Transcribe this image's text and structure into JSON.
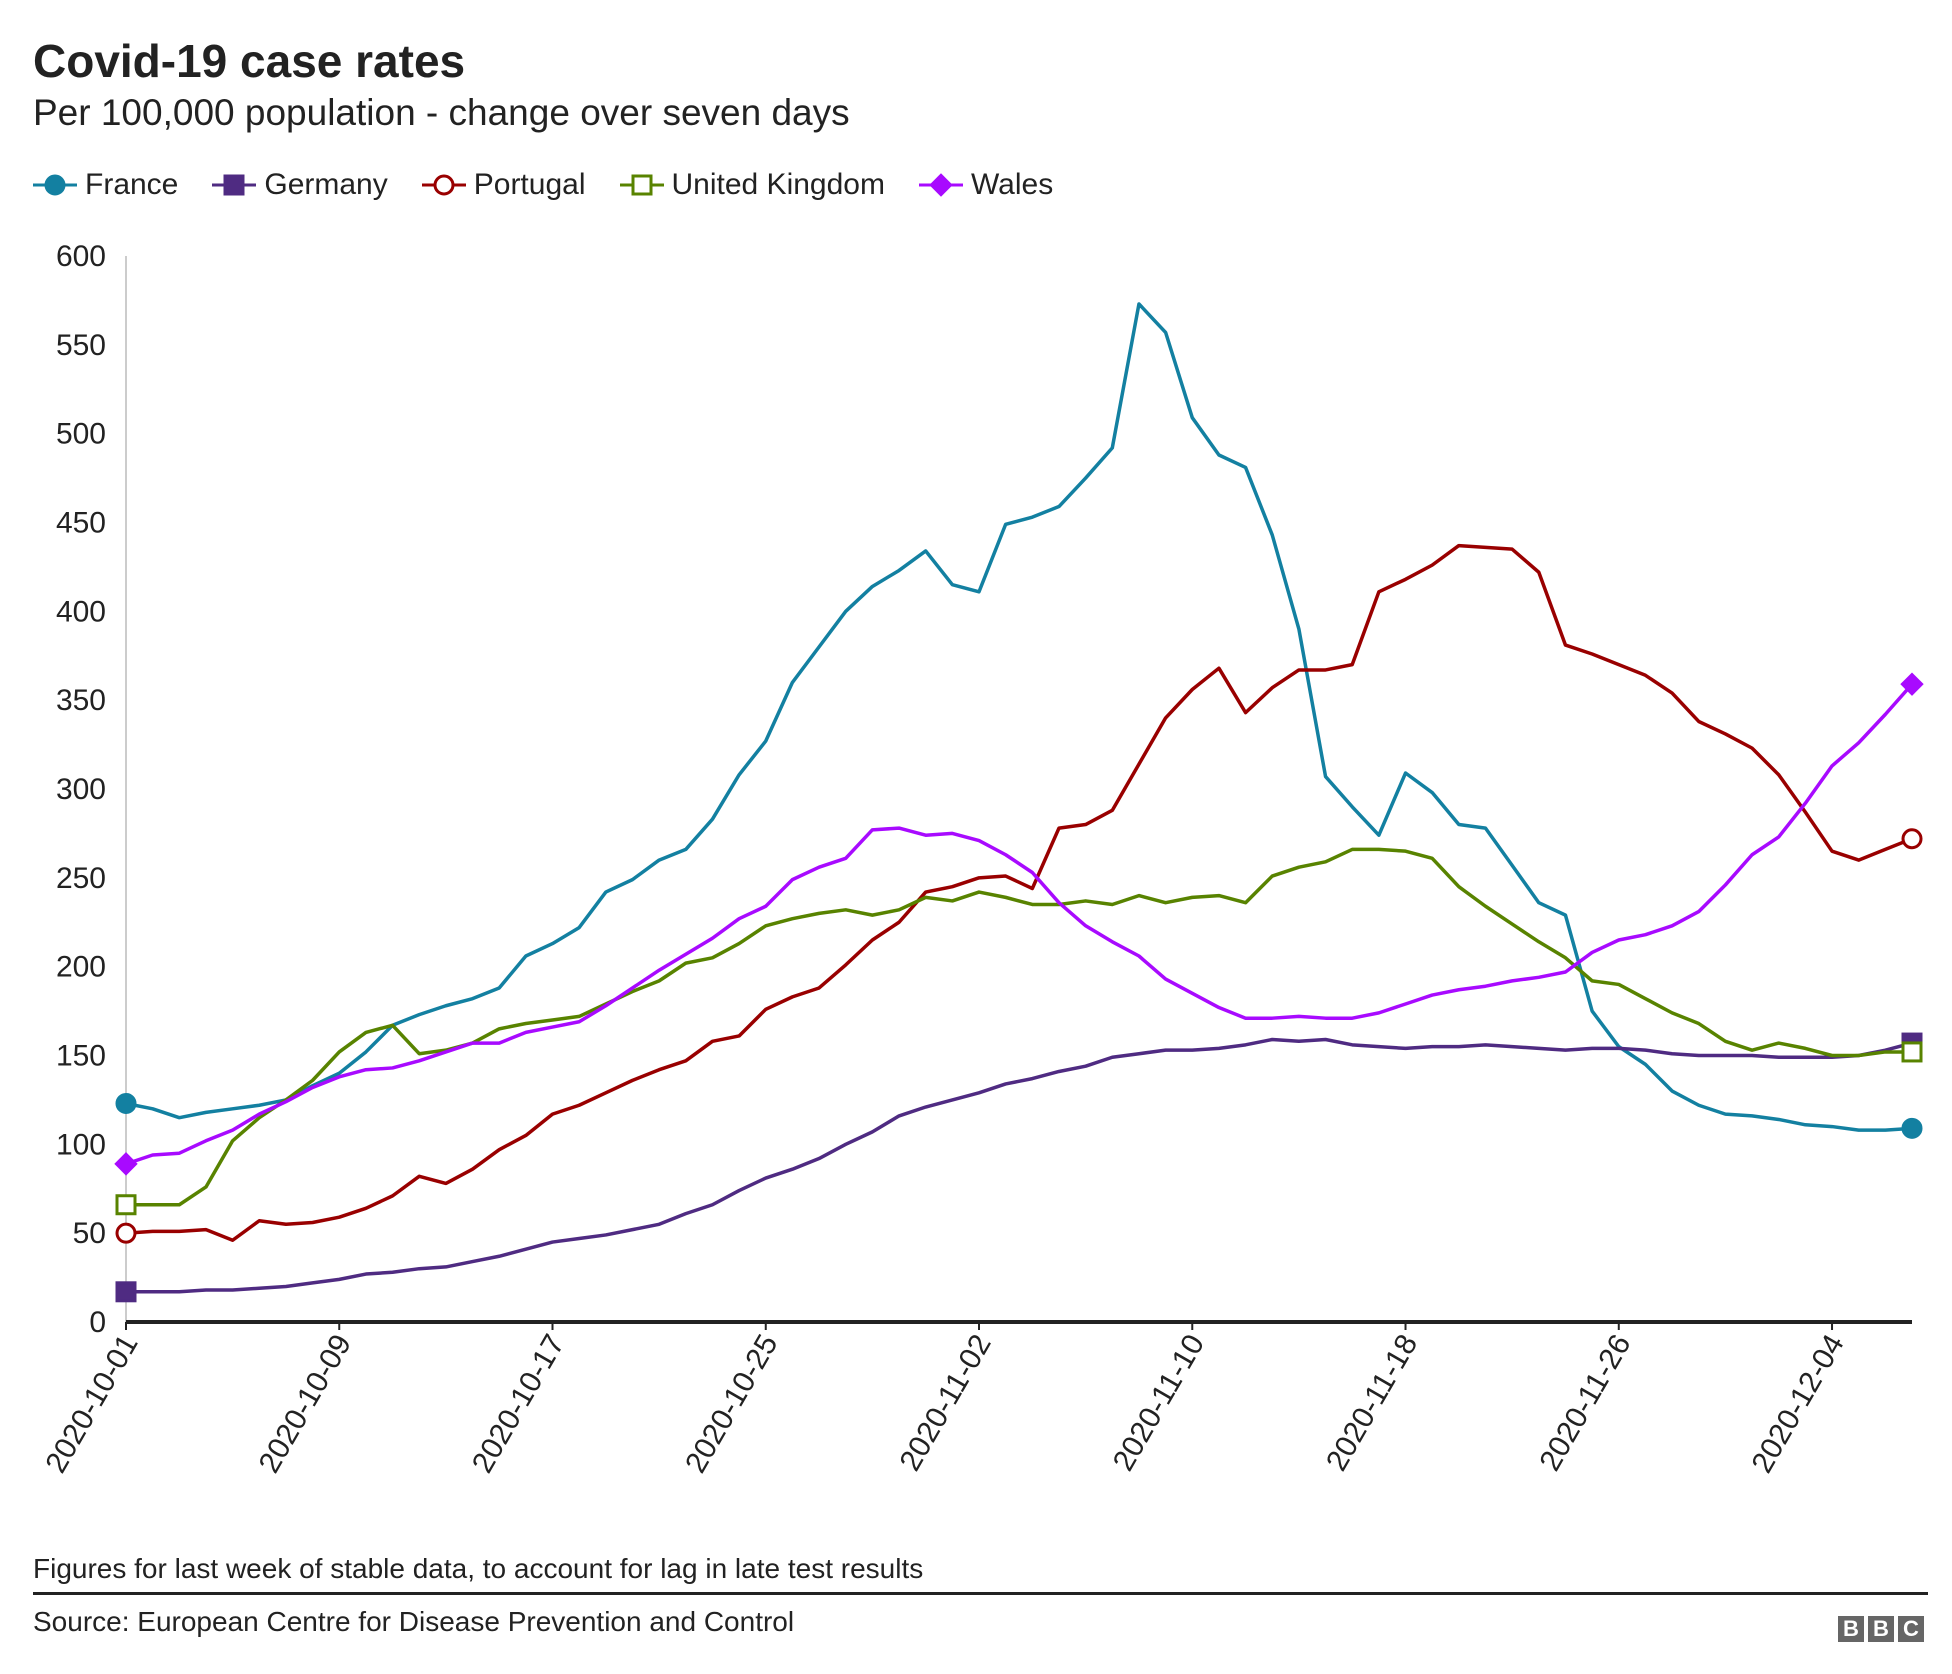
{
  "chart_data": {
    "type": "line",
    "title": "Covid-19 case rates",
    "subtitle": "Per 100,000 population - change over seven days",
    "x_start": "2020-10-01",
    "x_end": "2020-12-07",
    "x_tick_labels": [
      "2020-10-01",
      "2020-10-09",
      "2020-10-17",
      "2020-10-25",
      "2020-11-02",
      "2020-11-10",
      "2020-11-18",
      "2020-11-26",
      "2020-12-04"
    ],
    "y_ticks": [
      0,
      50,
      100,
      150,
      200,
      250,
      300,
      350,
      400,
      450,
      500,
      550,
      600
    ],
    "ylim": [
      0,
      600
    ],
    "grid": false,
    "legend_position": "top-left",
    "series": [
      {
        "name": "France",
        "color": "#1380a1",
        "marker": "circle-filled",
        "values": [
          123,
          120,
          115,
          118,
          120,
          122,
          125,
          133,
          140,
          152,
          167,
          173,
          178,
          182,
          188,
          206,
          213,
          222,
          242,
          249,
          260,
          266,
          283,
          308,
          327,
          360,
          380,
          400,
          414,
          423,
          434,
          415,
          411,
          449,
          453,
          459,
          475,
          492,
          573,
          557,
          509,
          488,
          481,
          443,
          390,
          307,
          290,
          274,
          309,
          298,
          280,
          278,
          257,
          236,
          229,
          175,
          155,
          145,
          130,
          122,
          117,
          116,
          114,
          111,
          110,
          108,
          108,
          109
        ]
      },
      {
        "name": "Germany",
        "color": "#4f2b82",
        "marker": "square-filled",
        "values": [
          17,
          17,
          17,
          18,
          18,
          19,
          20,
          22,
          24,
          27,
          28,
          30,
          31,
          34,
          37,
          41,
          45,
          47,
          49,
          52,
          55,
          61,
          66,
          74,
          81,
          86,
          92,
          100,
          107,
          116,
          121,
          125,
          129,
          134,
          137,
          141,
          144,
          149,
          151,
          153,
          153,
          154,
          156,
          159,
          158,
          159,
          156,
          155,
          154,
          155,
          155,
          156,
          155,
          154,
          153,
          154,
          154,
          153,
          151,
          150,
          150,
          150,
          149,
          149,
          149,
          150,
          153,
          157
        ]
      },
      {
        "name": "Portugal",
        "color": "#990000",
        "marker": "circle-open",
        "values": [
          50,
          51,
          51,
          52,
          46,
          57,
          55,
          56,
          59,
          64,
          71,
          82,
          78,
          86,
          97,
          105,
          117,
          122,
          129,
          136,
          142,
          147,
          158,
          161,
          176,
          183,
          188,
          201,
          215,
          225,
          242,
          245,
          250,
          251,
          244,
          278,
          280,
          288,
          314,
          340,
          356,
          368,
          343,
          357,
          367,
          367,
          370,
          411,
          418,
          426,
          437,
          436,
          435,
          422,
          381,
          376,
          370,
          364,
          354,
          338,
          331,
          323,
          308,
          287,
          265,
          260,
          266,
          272
        ]
      },
      {
        "name": "United Kingdom",
        "color": "#588300",
        "marker": "square-open",
        "values": [
          66,
          66,
          66,
          76,
          102,
          115,
          125,
          136,
          152,
          163,
          167,
          151,
          153,
          157,
          165,
          168,
          170,
          172,
          179,
          186,
          192,
          202,
          205,
          213,
          223,
          227,
          230,
          232,
          229,
          232,
          239,
          237,
          242,
          239,
          235,
          235,
          237,
          235,
          240,
          236,
          239,
          240,
          236,
          251,
          256,
          259,
          266,
          266,
          265,
          261,
          245,
          234,
          224,
          214,
          205,
          192,
          190,
          182,
          174,
          168,
          158,
          153,
          157,
          154,
          150,
          150,
          152,
          152
        ]
      },
      {
        "name": "Wales",
        "color": "#a80aff",
        "marker": "diamond-filled",
        "values": [
          89,
          94,
          95,
          102,
          108,
          117,
          124,
          132,
          138,
          142,
          143,
          147,
          152,
          157,
          157,
          163,
          166,
          169,
          178,
          188,
          198,
          207,
          216,
          227,
          234,
          249,
          256,
          261,
          277,
          278,
          274,
          275,
          271,
          263,
          253,
          236,
          223,
          214,
          206,
          193,
          185,
          177,
          171,
          171,
          172,
          171,
          171,
          174,
          179,
          184,
          187,
          189,
          192,
          194,
          197,
          208,
          215,
          218,
          223,
          231,
          246,
          263,
          273,
          292,
          313,
          326,
          342,
          359
        ]
      }
    ]
  },
  "footer": {
    "note": "Figures for last week of stable data, to account for lag in late test results",
    "source": "Source: European Centre for Disease Prevention and Control",
    "logo": "BBC"
  }
}
